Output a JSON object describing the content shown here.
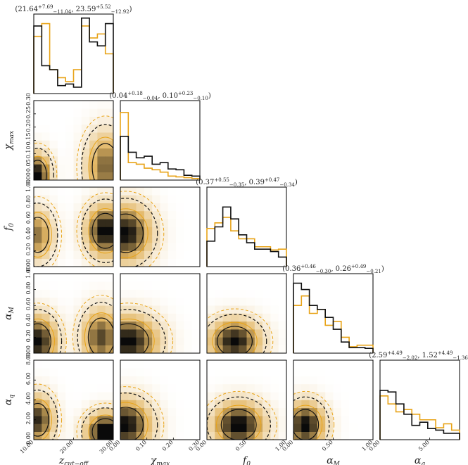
{
  "chart_data": {
    "type": "corner",
    "parameters": [
      {
        "key": "z",
        "label": "z",
        "sub": "cut−off",
        "range": [
          10,
          30
        ],
        "ticks": [
          10,
          20,
          30
        ],
        "tick_labels": [
          "10.00",
          "20.00",
          "30.00"
        ]
      },
      {
        "key": "chi",
        "label": "χ",
        "sub": "max",
        "range": [
          0,
          0.3
        ],
        "ticks": [
          0,
          0.05,
          0.1,
          0.15,
          0.2,
          0.25,
          0.3
        ],
        "tick_labels": [
          "0.00",
          "0.05",
          "0.10",
          "0.15",
          "0.20",
          "0.25",
          "0.30"
        ],
        "x_ticks": [
          0,
          0.1,
          0.2,
          0.3
        ],
        "x_tick_labels": [
          "0.00",
          "0.10",
          "0.20",
          "0.30"
        ]
      },
      {
        "key": "f0",
        "label": "f",
        "sub": "0",
        "range": [
          0,
          1
        ],
        "ticks": [
          0,
          0.2,
          0.4,
          0.6,
          0.8,
          1.0
        ],
        "tick_labels": [
          "0.00",
          "0.20",
          "0.40",
          "0.60",
          "0.80",
          "1.00"
        ],
        "x_ticks": [
          0,
          0.5,
          1.0
        ],
        "x_tick_labels": [
          "0.00",
          "0.50",
          "1.00"
        ]
      },
      {
        "key": "aM",
        "label": "α",
        "sub": "M",
        "range": [
          0,
          1
        ],
        "ticks": [
          0,
          0.2,
          0.4,
          0.6,
          0.8,
          1.0
        ],
        "tick_labels": [
          "0.00",
          "0.20",
          "0.40",
          "0.60",
          "0.80",
          "1.00"
        ],
        "x_ticks": [
          0,
          0.5,
          1.0
        ],
        "x_tick_labels": [
          "0.00",
          "0.50",
          "1.00"
        ]
      },
      {
        "key": "aq",
        "label": "α",
        "sub": "q",
        "range": [
          0,
          8
        ],
        "ticks": [
          0,
          2,
          4,
          6,
          8
        ],
        "tick_labels": [
          "0.00",
          "2.00",
          "4.00",
          "6.00",
          "8.00"
        ],
        "x_ticks": [
          0,
          5
        ],
        "x_tick_labels": [
          "0.00",
          "5.00"
        ]
      }
    ],
    "diag_titles": [
      {
        "v1": "21.64",
        "p1": "+7.69",
        "m1": "−11.04",
        "v2": "23.59",
        "p2": "+5.52",
        "m2": "−12.92"
      },
      {
        "v1": "0.04",
        "p1": "+0.18",
        "m1": "−0.04",
        "v2": "0.10",
        "p2": "+0.23",
        "m2": "−0.10"
      },
      {
        "v1": "0.37",
        "p1": "+0.55",
        "m1": "−0.35",
        "v2": "0.39",
        "p2": "+0.47",
        "m2": "−0.34"
      },
      {
        "v1": "0.36",
        "p1": "+0.46",
        "m1": "−0.30",
        "v2": "0.26",
        "p2": "+0.49",
        "m2": "−0.21"
      },
      {
        "v1": "2.59",
        "p1": "+4.49",
        "m1": "−2.02",
        "v2": "1.52",
        "p2": "+4.49",
        "m2": "−1.36"
      }
    ],
    "series": [
      {
        "color": "#111111",
        "style": "solid"
      },
      {
        "color": "#e8a317",
        "style": "solid"
      }
    ],
    "histograms": [
      {
        "param": "z",
        "black": [
          0.85,
          0.35,
          0.3,
          0.1,
          0.12,
          0.08,
          0.95,
          0.65,
          0.6,
          0.88
        ],
        "orange": [
          0.72,
          0.88,
          0.3,
          0.2,
          0.15,
          0.3,
          0.85,
          0.7,
          0.75,
          0.5
        ]
      },
      {
        "param": "chi",
        "black": [
          0.55,
          0.35,
          0.28,
          0.3,
          0.2,
          0.22,
          0.14,
          0.13,
          0.06,
          0.05
        ],
        "orange": [
          0.85,
          0.22,
          0.2,
          0.15,
          0.13,
          0.1,
          0.05,
          0.04,
          0.03,
          0.02
        ]
      },
      {
        "param": "f0",
        "black": [
          0.32,
          0.5,
          0.75,
          0.6,
          0.4,
          0.3,
          0.22,
          0.22,
          0.19,
          0.12
        ],
        "orange": [
          0.48,
          0.55,
          0.62,
          0.45,
          0.35,
          0.35,
          0.25,
          0.25,
          0.21,
          0.22
        ]
      },
      {
        "param": "aM",
        "black": [
          0.88,
          0.8,
          0.6,
          0.55,
          0.45,
          0.3,
          0.14,
          0.07,
          0.07,
          0.06
        ],
        "orange": [
          0.6,
          0.72,
          0.5,
          0.55,
          0.35,
          0.4,
          0.2,
          0.08,
          0.1,
          0.1
        ]
      },
      {
        "param": "aq",
        "black": [
          0.62,
          0.6,
          0.45,
          0.32,
          0.18,
          0.22,
          0.14,
          0.12,
          0.08,
          0.08
        ],
        "orange": [
          0.55,
          0.45,
          0.35,
          0.38,
          0.32,
          0.25,
          0.25,
          0.15,
          0.2,
          0.12
        ]
      }
    ],
    "pairs": [
      {
        "x": "z",
        "y": "chi",
        "blobs": [
          {
            "x": 11,
            "y": 0.02,
            "sx": 2,
            "sy": 0.05,
            "w": 1.0
          },
          {
            "x": 28,
            "y": 0.05,
            "sx": 3,
            "sy": 0.08,
            "w": 0.7
          }
        ]
      },
      {
        "x": "z",
        "y": "f0",
        "blobs": [
          {
            "x": 11,
            "y": 0.4,
            "sx": 2.5,
            "sy": 0.2,
            "w": 0.6
          },
          {
            "x": 28,
            "y": 0.45,
            "sx": 3,
            "sy": 0.2,
            "w": 1.0
          }
        ]
      },
      {
        "x": "z",
        "y": "aM",
        "blobs": [
          {
            "x": 11,
            "y": 0.15,
            "sx": 3,
            "sy": 0.2,
            "w": 1.0
          },
          {
            "x": 27,
            "y": 0.2,
            "sx": 3,
            "sy": 0.22,
            "w": 0.8
          }
        ]
      },
      {
        "x": "z",
        "y": "aq",
        "blobs": [
          {
            "x": 11,
            "y": 2,
            "sx": 2.5,
            "sy": 1.5,
            "w": 0.8
          },
          {
            "x": 28,
            "y": 0.8,
            "sx": 3,
            "sy": 1.2,
            "w": 1.0
          }
        ]
      },
      {
        "x": "chi",
        "y": "f0",
        "blobs": [
          {
            "x": 0.02,
            "y": 0.42,
            "sx": 0.06,
            "sy": 0.22,
            "w": 1.0
          }
        ]
      },
      {
        "x": "chi",
        "y": "aM",
        "blobs": [
          {
            "x": 0.03,
            "y": 0.15,
            "sx": 0.07,
            "sy": 0.2,
            "w": 1.0
          }
        ]
      },
      {
        "x": "chi",
        "y": "aq",
        "blobs": [
          {
            "x": 0.02,
            "y": 1.5,
            "sx": 0.06,
            "sy": 1.6,
            "w": 1.0
          }
        ]
      },
      {
        "x": "f0",
        "y": "aM",
        "blobs": [
          {
            "x": 0.35,
            "y": 0.15,
            "sx": 0.2,
            "sy": 0.17,
            "w": 1.0
          }
        ]
      },
      {
        "x": "f0",
        "y": "aq",
        "blobs": [
          {
            "x": 0.4,
            "y": 1.5,
            "sx": 0.2,
            "sy": 1.4,
            "w": 1.0
          }
        ]
      },
      {
        "x": "aM",
        "y": "aq",
        "blobs": [
          {
            "x": 0.15,
            "y": 1.5,
            "sx": 0.15,
            "sy": 1.4,
            "w": 1.0
          }
        ]
      }
    ]
  }
}
